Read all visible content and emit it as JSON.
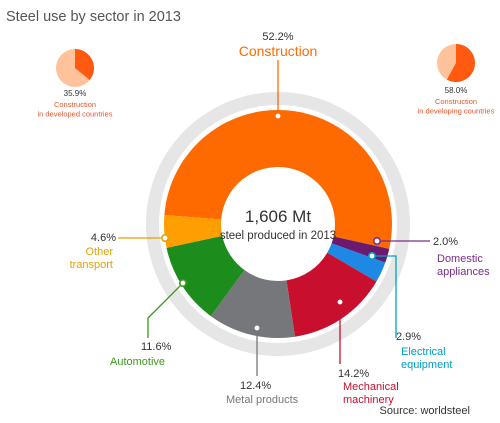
{
  "chart_data": {
    "type": "pie",
    "title": "Steel use by sector in 2013",
    "center": {
      "value": "1,606 Mt",
      "label": "steel produced in 2013"
    },
    "series": [
      {
        "name": "Construction",
        "value": 52.2,
        "value_label": "52.2%",
        "label_lines": [
          "Construction"
        ],
        "color": "#ff6a00"
      },
      {
        "name": "Domestic appliances",
        "value": 2.0,
        "value_label": "2.0%",
        "label_lines": [
          "Domestic",
          "appliances"
        ],
        "color": "#6a1b6f"
      },
      {
        "name": "Electrical equipment",
        "value": 2.9,
        "value_label": "2.9%",
        "label_lines": [
          "Electrical",
          "equipment"
        ],
        "color": "#1e88e5"
      },
      {
        "name": "Mechanical machinery",
        "value": 14.2,
        "value_label": "14.2%",
        "label_lines": [
          "Mechanical",
          "machinery"
        ],
        "color": "#c8102e"
      },
      {
        "name": "Metal products",
        "value": 12.4,
        "value_label": "12.4%",
        "label_lines": [
          "Metal products"
        ],
        "color": "#76777b"
      },
      {
        "name": "Automotive",
        "value": 11.6,
        "value_label": "11.6%",
        "label_lines": [
          "Automotive"
        ],
        "color": "#1c8c1c"
      },
      {
        "name": "Other transport",
        "value": 4.6,
        "value_label": "4.6%",
        "label_lines": [
          "Other",
          "transport"
        ],
        "color": "#ff9e00"
      }
    ],
    "label_colors": {
      "Construction": "#ff6a00",
      "Domestic appliances": "#7b2d8b",
      "Electrical equipment": "#00a0c6",
      "Mechanical machinery": "#c8102e",
      "Metal products": "#777777",
      "Automotive": "#3a9a1e",
      "Other transport": "#e6a100"
    },
    "insets": [
      {
        "value": 35.9,
        "value_label": "35.9%",
        "label_lines": [
          "Construction",
          "in developed countries"
        ],
        "highlight_color": "#ff5a10",
        "rest_color": "#ffc29a"
      },
      {
        "value": 58.0,
        "value_label": "58.0%",
        "label_lines": [
          "Construction",
          "in developing countries"
        ],
        "highlight_color": "#ff5a10",
        "rest_color": "#ffc29a"
      }
    ],
    "source": "Source: worldsteel",
    "colors": {
      "title": "#555555",
      "ring": "#e6e6e6",
      "text_dark": "#333333",
      "inset_label": "#e3572b"
    }
  }
}
